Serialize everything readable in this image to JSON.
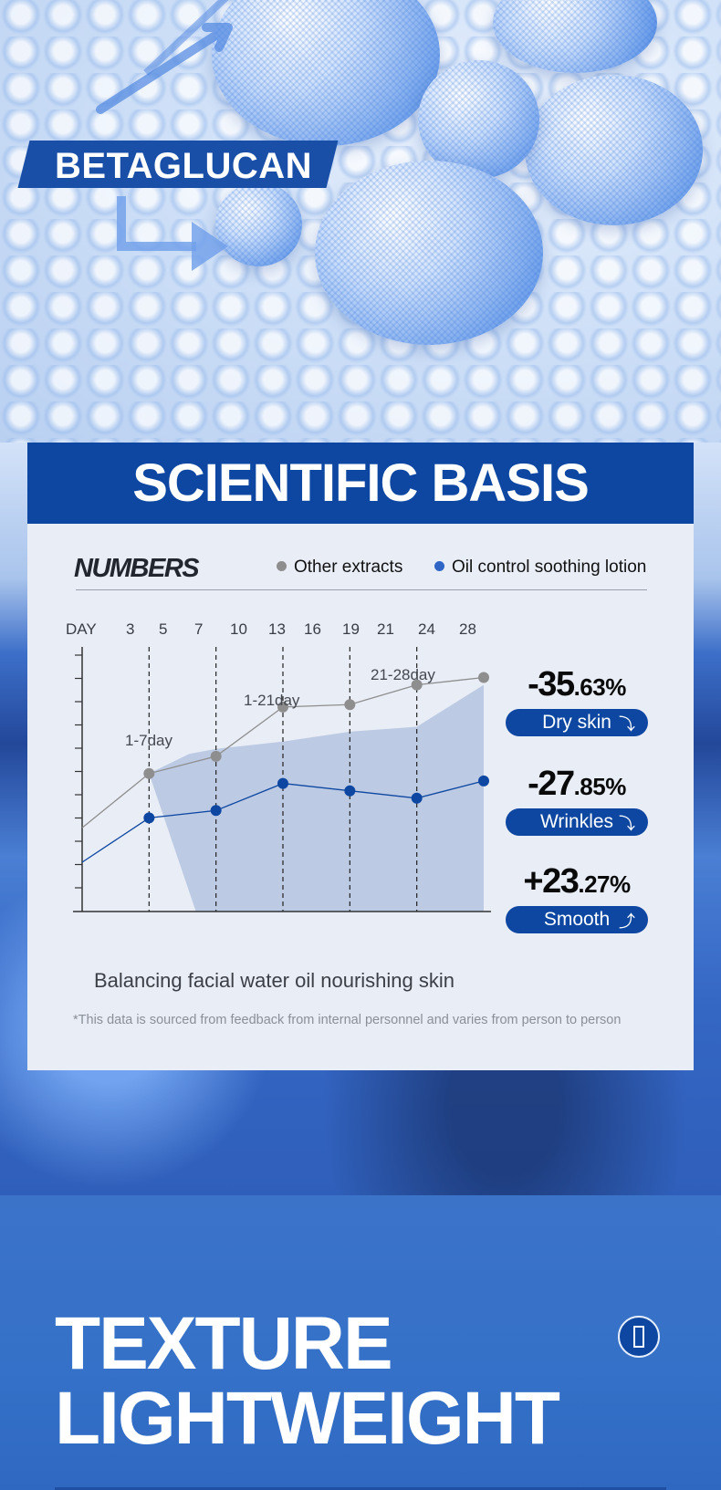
{
  "hero": {
    "tag": "BETAGLUCAN",
    "colors": {
      "accent": "#1a4fa8"
    }
  },
  "section": {
    "title": "SCIENTIFIC BASIS",
    "subheading": "NUMBERS",
    "caption": "Balancing facial water oil nourishing skin",
    "footnote": "*This data is sourced from feedback from internal personnel and varies from person to person"
  },
  "chart_data": {
    "type": "line",
    "x_axis_label": "DAY",
    "x_ticks": [
      "3",
      "5",
      "7",
      "10",
      "13",
      "16",
      "19",
      "21",
      "24",
      "28"
    ],
    "grid": "vertical dashed lines at phase points",
    "legend_placement": "top-right",
    "series": [
      {
        "name": "Other extracts",
        "color": "#8e8e8e",
        "x": [
          0,
          5,
          10,
          15,
          20,
          25,
          30
        ],
        "y": [
          34,
          56,
          63,
          83,
          84,
          92,
          95
        ]
      },
      {
        "name": "Oil control soothing lotion",
        "color": "#0d47a1",
        "x": [
          0,
          5,
          10,
          15,
          20,
          25,
          30
        ],
        "y": [
          20,
          38,
          41,
          52,
          49,
          46,
          53
        ]
      }
    ],
    "shaded_area": {
      "x": [
        5,
        8,
        10,
        15,
        20,
        25,
        30
      ],
      "y_top": [
        56,
        64,
        66,
        69,
        73,
        75,
        92
      ],
      "y_bottom_start_x": 8.5
    },
    "annotations": [
      "1-7day",
      "1-21day",
      "21-28day"
    ]
  },
  "stats": [
    {
      "value_main": "-35",
      "value_dec": ".63%",
      "label": "Dry skin",
      "direction": "down",
      "arrow": "⤵"
    },
    {
      "value_main": "-27",
      "value_dec": ".85%",
      "label": "Wrinkles",
      "direction": "down",
      "arrow": "⤵"
    },
    {
      "value_main": "+23",
      "value_dec": ".27%",
      "label": "Smooth",
      "direction": "up",
      "arrow": "⤴"
    }
  ],
  "bottom": {
    "title_line1": "TEXTURE",
    "title_line2": "LIGHTWEIGHT",
    "info_icon": "info-icon"
  }
}
